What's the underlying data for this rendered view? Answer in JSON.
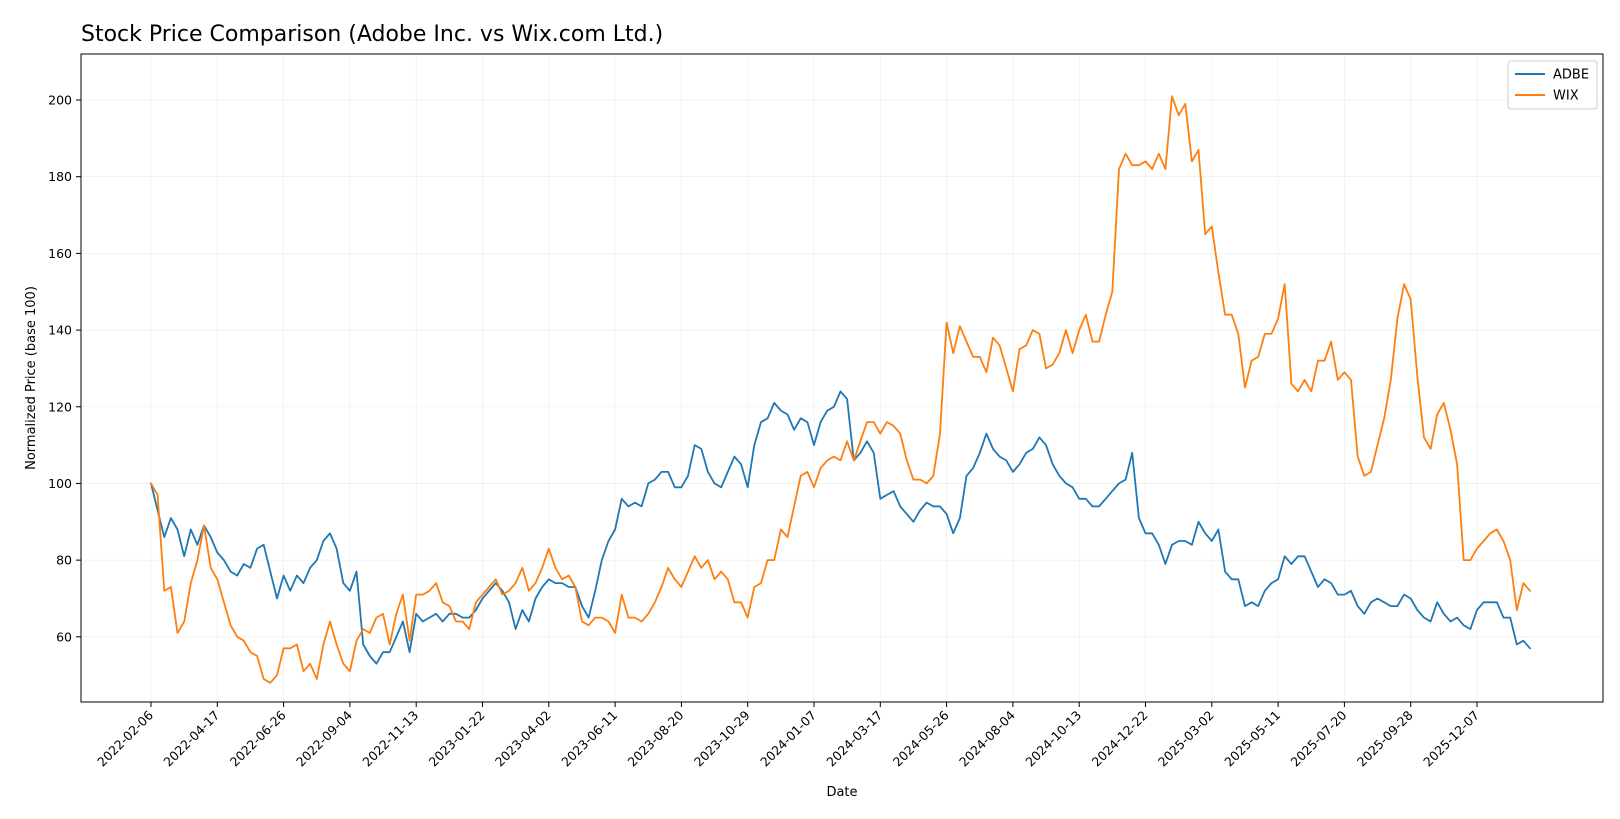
{
  "chart_data": {
    "type": "line",
    "title": "Stock Price Comparison (Adobe Inc. vs Wix.com Ltd.)",
    "xlabel": "Date",
    "ylabel": "Normalized Price (base 100)",
    "ylim": [
      43,
      212
    ],
    "yticks": [
      60,
      80,
      100,
      120,
      140,
      160,
      180,
      200
    ],
    "xtick_labels": [
      "2022-02-06",
      "2022-04-17",
      "2022-06-26",
      "2022-09-04",
      "2022-11-13",
      "2023-01-22",
      "2023-04-02",
      "2023-06-11",
      "2023-08-20",
      "2023-10-29",
      "2024-01-07",
      "2024-03-17",
      "2024-05-26",
      "2024-08-04",
      "2024-10-13",
      "2024-12-22",
      "2025-03-02",
      "2025-05-11",
      "2025-07-20",
      "2025-09-28",
      "2025-12-07"
    ],
    "grid": true,
    "legend_position": "top-right",
    "series": [
      {
        "name": "ADBE",
        "color": "#1f77b4",
        "values": [
          100,
          93,
          86,
          91,
          88,
          81,
          88,
          84,
          89,
          86,
          82,
          80,
          77,
          76,
          79,
          78,
          83,
          84,
          77,
          70,
          76,
          72,
          76,
          74,
          78,
          80,
          85,
          87,
          83,
          74,
          72,
          77,
          58,
          55,
          53,
          56,
          56,
          60,
          64,
          56,
          66,
          64,
          65,
          66,
          64,
          66,
          66,
          65,
          65,
          67,
          70,
          72,
          74,
          72,
          69,
          62,
          67,
          64,
          70,
          73,
          75,
          74,
          74,
          73,
          73,
          68,
          65,
          72,
          80,
          85,
          88,
          96,
          94,
          95,
          94,
          100,
          101,
          103,
          103,
          99,
          99,
          102,
          110,
          109,
          103,
          100,
          99,
          103,
          107,
          105,
          99,
          110,
          116,
          117,
          121,
          119,
          118,
          114,
          117,
          116,
          110,
          116,
          119,
          120,
          124,
          122,
          106,
          108,
          111,
          108,
          96,
          97,
          98,
          94,
          92,
          90,
          93,
          95,
          94,
          94,
          92,
          87,
          91,
          102,
          104,
          108,
          113,
          109,
          107,
          106,
          103,
          105,
          108,
          109,
          112,
          110,
          105,
          102,
          100,
          99,
          96,
          96,
          94,
          94,
          96,
          98,
          100,
          101,
          108,
          91,
          87,
          87,
          84,
          79,
          84,
          85,
          85,
          84,
          90,
          87,
          85,
          88,
          77,
          75,
          75,
          68,
          69,
          68,
          72,
          74,
          75,
          81,
          79,
          81,
          81,
          77,
          73,
          75,
          74,
          71,
          71,
          72,
          68,
          66,
          69,
          70,
          69,
          68,
          68,
          71,
          70,
          67,
          65,
          64,
          69,
          66,
          64,
          65,
          63,
          62,
          67,
          69,
          69,
          69,
          65,
          65,
          58,
          59,
          57
        ]
      },
      {
        "name": "WIX",
        "color": "#ff7f0e",
        "values": [
          100,
          97,
          72,
          73,
          61,
          64,
          74,
          80,
          89,
          78,
          75,
          69,
          63,
          60,
          59,
          56,
          55,
          49,
          48,
          50,
          57,
          57,
          58,
          51,
          53,
          49,
          58,
          64,
          58,
          53,
          51,
          59,
          62,
          61,
          65,
          66,
          58,
          66,
          71,
          59,
          71,
          71,
          72,
          74,
          69,
          68,
          64,
          64,
          62,
          69,
          71,
          73,
          75,
          71,
          72,
          74,
          78,
          72,
          74,
          78,
          83,
          78,
          75,
          76,
          73,
          64,
          63,
          65,
          65,
          64,
          61,
          71,
          65,
          65,
          64,
          66,
          69,
          73,
          78,
          75,
          73,
          77,
          81,
          78,
          80,
          75,
          77,
          75,
          69,
          69,
          65,
          73,
          74,
          80,
          80,
          88,
          86,
          94,
          102,
          103,
          99,
          104,
          106,
          107,
          106,
          111,
          106,
          111,
          116,
          116,
          113,
          116,
          115,
          113,
          106,
          101,
          101,
          100,
          102,
          113,
          142,
          134,
          141,
          137,
          133,
          133,
          129,
          138,
          136,
          130,
          124,
          135,
          136,
          140,
          139,
          130,
          131,
          134,
          140,
          134,
          140,
          144,
          137,
          137,
          144,
          150,
          182,
          186,
          183,
          183,
          184,
          182,
          186,
          182,
          201,
          196,
          199,
          184,
          187,
          165,
          167,
          155,
          144,
          144,
          139,
          125,
          132,
          133,
          139,
          139,
          143,
          152,
          126,
          124,
          127,
          124,
          132,
          132,
          137,
          127,
          129,
          127,
          107,
          102,
          103,
          110,
          117,
          127,
          143,
          152,
          148,
          128,
          112,
          109,
          118,
          121,
          114,
          105,
          80,
          80,
          83,
          85,
          87,
          88,
          85,
          80,
          67,
          74,
          72
        ]
      }
    ]
  }
}
